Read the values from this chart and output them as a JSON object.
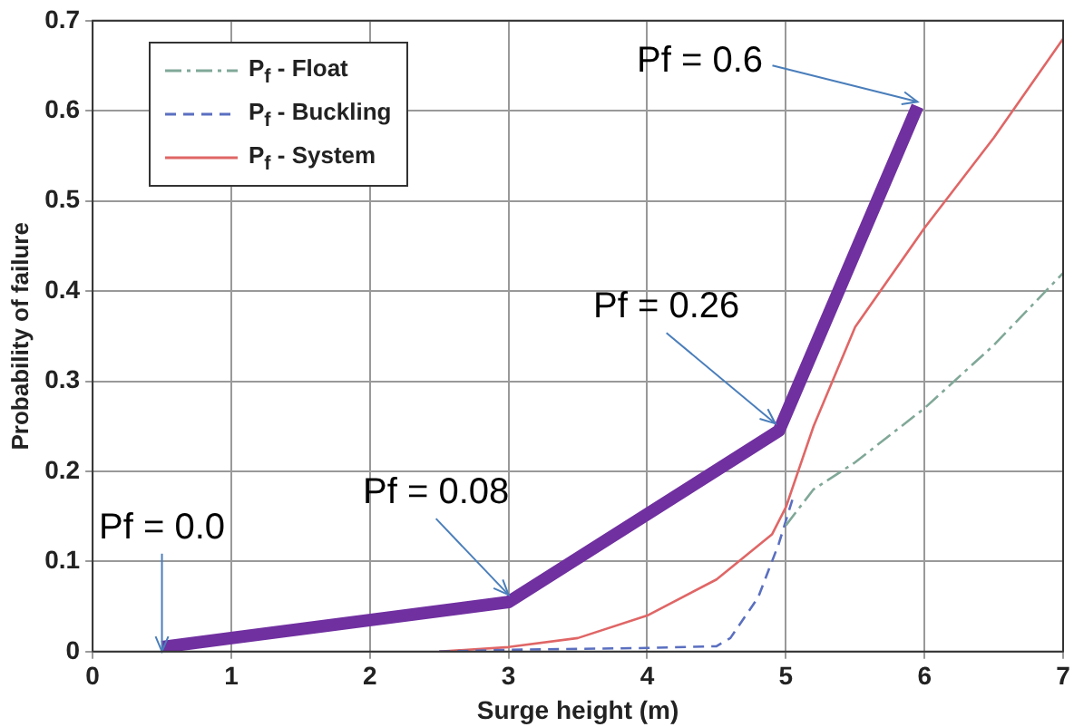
{
  "chart_data": {
    "type": "line",
    "xlabel": "Surge height (m)",
    "ylabel": "Probability of failure",
    "xlim": [
      0,
      7
    ],
    "xticks": [
      0,
      1,
      2,
      3,
      4,
      5,
      6,
      7
    ],
    "ylim": [
      0,
      0.7
    ],
    "yticks": [
      0,
      0.1,
      0.2,
      0.3,
      0.4,
      0.5,
      0.6,
      0.7
    ],
    "grid": true,
    "legend": "top left",
    "marker": "none",
    "series": [
      {
        "name": "P$_{f}$ - Float",
        "color": "#80a898",
        "line_style": "dashed",
        "x": [
          5,
          5.2,
          5.5,
          6,
          6.5,
          7
        ],
        "values": [
          0.14,
          0.18,
          0.21,
          0.27,
          0.34,
          0.42
        ]
      },
      {
        "name": "P$_{f}$ - Buckling",
        "color": "#5a6fc0",
        "line_style": "dashed",
        "x": [
          2.5,
          3,
          3.5,
          4,
          4.5,
          4.6,
          4.8,
          4.95,
          5.05
        ],
        "values": [
          0,
          0.002,
          0.003,
          0.004,
          0.006,
          0.015,
          0.06,
          0.12,
          0.17
        ]
      },
      {
        "name": "P$_{f}$ - System",
        "color": "#e06666",
        "line_style": "solid",
        "x": [
          2.5,
          3,
          3.5,
          4,
          4.5,
          4.9,
          5,
          5.2,
          5.5,
          6,
          6.5,
          7
        ],
        "values": [
          0,
          0.005,
          0.015,
          0.04,
          0.08,
          0.13,
          0.16,
          0.25,
          0.36,
          0.47,
          0.57,
          0.68
        ]
      },
      {
        "color": "#7030a0",
        "line_style": "solid",
        "x": [
          0.5,
          3,
          4.95,
          5.95
        ],
        "values": [
          0.005,
          0.055,
          0.245,
          0.605
        ]
      }
    ],
    "annotations": [
      {
        "text": "Pf = 0.0",
        "x": 0.5,
        "y": 0
      },
      {
        "text": "Pf = 0.08",
        "x": 3,
        "y": 0.055
      },
      {
        "text": "Pf = 0.26",
        "x": 4.95,
        "y": 0.245
      },
      {
        "text": "Pf = 0.6",
        "x": 5.95,
        "y": 0.61
      }
    ]
  }
}
